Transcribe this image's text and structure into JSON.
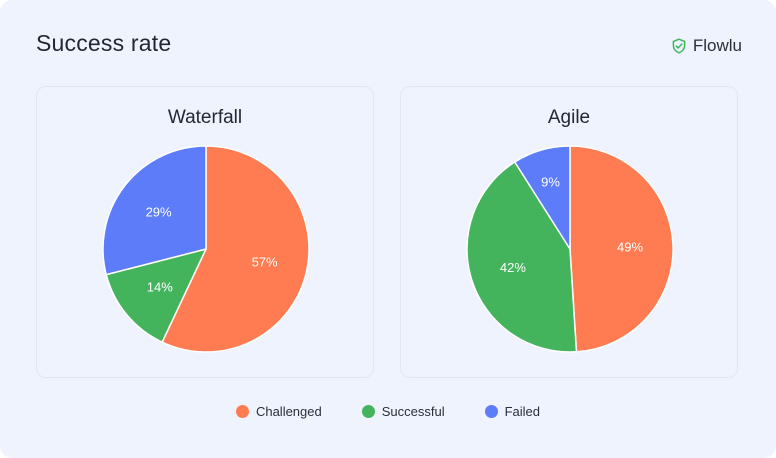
{
  "header": {
    "title": "Success rate",
    "brand": "Flowlu",
    "brand_icon": "shield-check-icon",
    "brand_color": "#3cb65a"
  },
  "colors": {
    "Challenged": "#ff7c52",
    "Successful": "#44b45c",
    "Failed": "#5c7cfa",
    "divider": "#ffffff"
  },
  "legend": {
    "position": "bottom-center",
    "items": [
      {
        "label": "Challenged",
        "key": "Challenged"
      },
      {
        "label": "Successful",
        "key": "Successful"
      },
      {
        "label": "Failed",
        "key": "Failed"
      }
    ]
  },
  "chart_data": [
    {
      "type": "pie",
      "title": "Waterfall",
      "categories": [
        "Challenged",
        "Successful",
        "Failed"
      ],
      "values": [
        57,
        14,
        29
      ],
      "labels": [
        "57%",
        "14%",
        "29%"
      ]
    },
    {
      "type": "pie",
      "title": "Agile",
      "categories": [
        "Challenged",
        "Successful",
        "Failed"
      ],
      "values": [
        49,
        42,
        9
      ],
      "labels": [
        "49%",
        "42%",
        "9%"
      ]
    }
  ]
}
